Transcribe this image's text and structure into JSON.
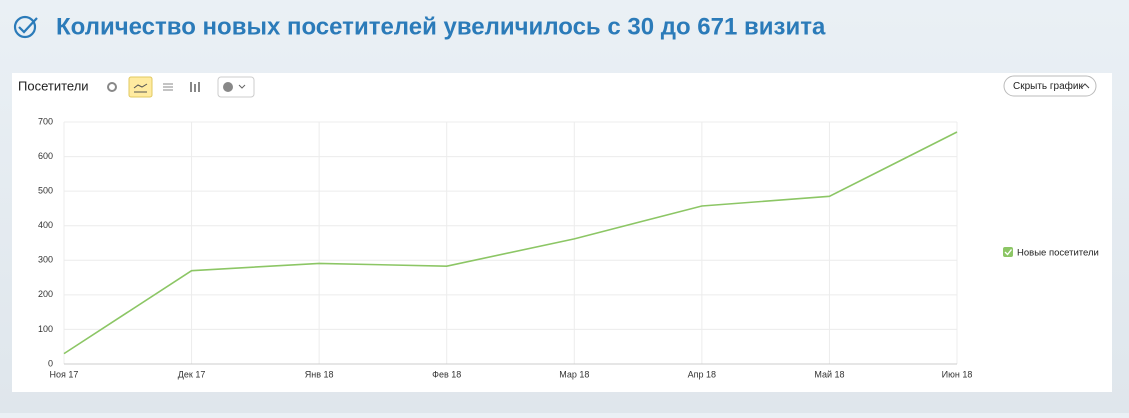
{
  "header": {
    "title": "Количество новых посетителей увеличилось с 30 до 671 визита"
  },
  "toolbar": {
    "title": "Посетители",
    "hide_button": "Скрыть график"
  },
  "chart_data": {
    "type": "line",
    "categories": [
      "Ноя 17",
      "Дек 17",
      "Янв 18",
      "Фев 18",
      "Мар 18",
      "Апр 18",
      "Май 18",
      "Июн 18"
    ],
    "series": [
      {
        "name": "Новые посетители",
        "color": "#8cc665",
        "values": [
          30,
          270,
          291,
          283,
          362,
          457,
          485,
          671
        ]
      }
    ],
    "ylim": [
      0,
      700
    ],
    "yticks": [
      0,
      100,
      200,
      300,
      400,
      500,
      600,
      700
    ],
    "grid": true,
    "legend": "right"
  }
}
